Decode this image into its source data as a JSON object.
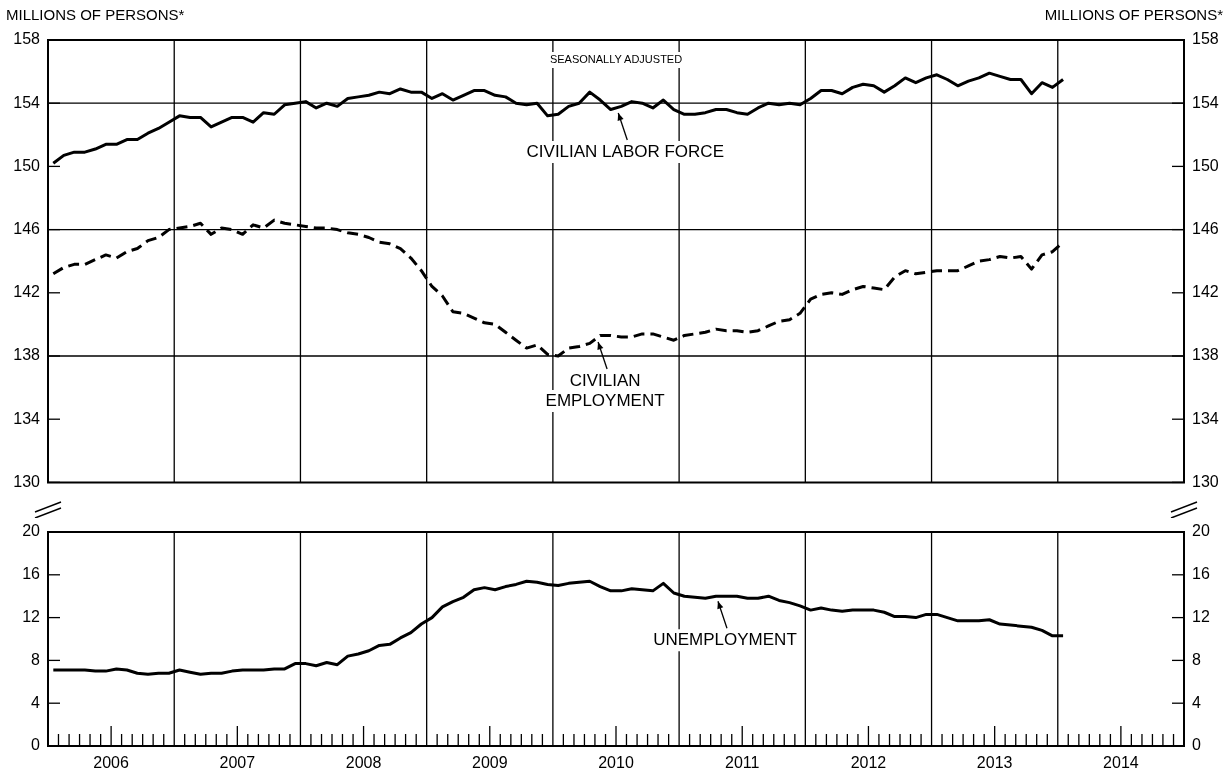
{
  "chart_data": [
    {
      "type": "line",
      "ylabel": "MILLIONS OF PERSONS*",
      "y2label": "MILLIONS OF PERSONS*",
      "x": [
        2006.042,
        2006.125,
        2006.208,
        2006.292,
        2006.375,
        2006.458,
        2006.542,
        2006.625,
        2006.708,
        2006.792,
        2006.875,
        2006.958,
        2007.042,
        2007.125,
        2007.208,
        2007.292,
        2007.375,
        2007.458,
        2007.542,
        2007.625,
        2007.708,
        2007.792,
        2007.875,
        2007.958,
        2008.042,
        2008.125,
        2008.208,
        2008.292,
        2008.375,
        2008.458,
        2008.542,
        2008.625,
        2008.708,
        2008.792,
        2008.875,
        2008.958,
        2009.042,
        2009.125,
        2009.208,
        2009.292,
        2009.375,
        2009.458,
        2009.542,
        2009.625,
        2009.708,
        2009.792,
        2009.875,
        2009.958,
        2010.042,
        2010.125,
        2010.208,
        2010.292,
        2010.375,
        2010.458,
        2010.542,
        2010.625,
        2010.708,
        2010.792,
        2010.875,
        2010.958,
        2011.042,
        2011.125,
        2011.208,
        2011.292,
        2011.375,
        2011.458,
        2011.542,
        2011.625,
        2011.708,
        2011.792,
        2011.875,
        2011.958,
        2012.042,
        2012.125,
        2012.208,
        2012.292,
        2012.375,
        2012.458,
        2012.542,
        2012.625,
        2012.708,
        2012.792,
        2012.875,
        2012.958,
        2013.042,
        2013.125,
        2013.208,
        2013.292,
        2013.375,
        2013.458,
        2013.542,
        2013.625,
        2013.708,
        2013.792,
        2013.875,
        2013.958,
        2014.042
      ],
      "series": [
        {
          "color": "#000000",
          "line_style": "solid",
          "values": [
            150.2,
            150.7,
            150.9,
            150.9,
            151.1,
            151.4,
            151.4,
            151.7,
            151.7,
            152.1,
            152.4,
            152.8,
            153.2,
            153.1,
            153.1,
            152.5,
            152.8,
            153.1,
            153.1,
            152.8,
            153.4,
            153.3,
            153.9,
            154.0,
            154.1,
            153.7,
            154.0,
            153.8,
            154.3,
            154.4,
            154.5,
            154.7,
            154.6,
            154.9,
            154.7,
            154.7,
            154.3,
            154.6,
            154.2,
            154.5,
            154.8,
            154.8,
            154.5,
            154.4,
            154.0,
            153.9,
            154.0,
            153.2,
            153.3,
            153.8,
            154.0,
            154.7,
            154.2,
            153.6,
            153.8,
            154.1,
            154.0,
            153.7,
            154.2,
            153.6,
            153.3,
            153.3,
            153.4,
            153.6,
            153.6,
            153.4,
            153.3,
            153.7,
            154.0,
            153.9,
            154.0,
            153.9,
            154.3,
            154.8,
            154.8,
            154.6,
            155.0,
            155.2,
            155.1,
            154.7,
            155.1,
            155.6,
            155.3,
            155.6,
            155.8,
            155.5,
            155.1,
            155.4,
            155.6,
            155.9,
            155.7,
            155.5,
            155.5,
            154.6,
            155.3,
            155.0,
            155.5
          ]
        },
        {
          "color": "#000000",
          "line_style": "dashed",
          "values": [
            143.2,
            143.6,
            143.8,
            143.8,
            144.1,
            144.4,
            144.2,
            144.6,
            144.8,
            145.3,
            145.5,
            146.0,
            146.1,
            146.2,
            146.4,
            145.7,
            146.1,
            146.0,
            145.7,
            146.3,
            146.1,
            146.6,
            146.4,
            146.3,
            146.2,
            146.1,
            146.1,
            146.0,
            145.8,
            145.7,
            145.5,
            145.2,
            145.1,
            144.8,
            144.2,
            143.4,
            142.4,
            141.8,
            140.8,
            140.7,
            140.4,
            140.1,
            140.0,
            139.5,
            139.0,
            138.5,
            138.7,
            138.1,
            138.0,
            138.5,
            138.6,
            138.8,
            139.3,
            139.3,
            139.2,
            139.2,
            139.4,
            139.4,
            139.2,
            139.0,
            139.3,
            139.4,
            139.5,
            139.7,
            139.6,
            139.6,
            139.5,
            139.6,
            139.9,
            140.2,
            140.3,
            140.7,
            141.6,
            141.9,
            142.0,
            141.9,
            142.2,
            142.4,
            142.3,
            142.2,
            143.0,
            143.4,
            143.2,
            143.3,
            143.4,
            143.4,
            143.4,
            143.7,
            144.0,
            144.1,
            144.3,
            144.2,
            144.3,
            143.5,
            144.4,
            144.6,
            145.2
          ]
        }
      ],
      "xlim": [
        2006,
        2015
      ],
      "ylim": [
        130,
        158
      ],
      "yticks": [
        130,
        134,
        138,
        142,
        146,
        150,
        154,
        158
      ],
      "y2lim": [
        130,
        158
      ],
      "y2ticks": [
        130,
        134,
        138,
        142,
        146,
        150,
        154,
        158
      ],
      "tick_labels": "y",
      "grid": false,
      "legend": false,
      "marker": "none",
      "ref_lines": [
        {
          "axis": "y",
          "value": 154
        },
        {
          "axis": "y",
          "value": 146
        },
        {
          "axis": "y",
          "value": 138
        },
        {
          "axis": "x",
          "value": 2007
        },
        {
          "axis": "x",
          "value": 2008
        },
        {
          "axis": "x",
          "value": 2009
        },
        {
          "axis": "x",
          "value": 2010
        },
        {
          "axis": "x",
          "value": 2011
        },
        {
          "axis": "x",
          "value": 2012
        },
        {
          "axis": "x",
          "value": 2013
        },
        {
          "axis": "x",
          "value": 2014
        }
      ],
      "annotations": [
        "SEASONALLY ADJUSTED",
        {
          "text": "CIVILIAN LABOR FORCE",
          "x": 2010.51,
          "y": 153.7
        },
        {
          "text": "CIVILIAN\nEMPLOYMENT",
          "x": 2010.35,
          "y": 139.2
        }
      ]
    },
    {
      "type": "line",
      "x": [
        2006.042,
        2006.125,
        2006.208,
        2006.292,
        2006.375,
        2006.458,
        2006.542,
        2006.625,
        2006.708,
        2006.792,
        2006.875,
        2006.958,
        2007.042,
        2007.125,
        2007.208,
        2007.292,
        2007.375,
        2007.458,
        2007.542,
        2007.625,
        2007.708,
        2007.792,
        2007.875,
        2007.958,
        2008.042,
        2008.125,
        2008.208,
        2008.292,
        2008.375,
        2008.458,
        2008.542,
        2008.625,
        2008.708,
        2008.792,
        2008.875,
        2008.958,
        2009.042,
        2009.125,
        2009.208,
        2009.292,
        2009.375,
        2009.458,
        2009.542,
        2009.625,
        2009.708,
        2009.792,
        2009.875,
        2009.958,
        2010.042,
        2010.125,
        2010.208,
        2010.292,
        2010.375,
        2010.458,
        2010.542,
        2010.625,
        2010.708,
        2010.792,
        2010.875,
        2010.958,
        2011.042,
        2011.125,
        2011.208,
        2011.292,
        2011.375,
        2011.458,
        2011.542,
        2011.625,
        2011.708,
        2011.792,
        2011.875,
        2011.958,
        2012.042,
        2012.125,
        2012.208,
        2012.292,
        2012.375,
        2012.458,
        2012.542,
        2012.625,
        2012.708,
        2012.792,
        2012.875,
        2012.958,
        2013.042,
        2013.125,
        2013.208,
        2013.292,
        2013.375,
        2013.458,
        2013.542,
        2013.625,
        2013.708,
        2013.792,
        2013.875,
        2013.958,
        2014.042
      ],
      "series": [
        {
          "color": "#000000",
          "line_style": "solid",
          "values": [
            7.1,
            7.1,
            7.1,
            7.1,
            7.0,
            7.0,
            7.2,
            7.1,
            6.8,
            6.7,
            6.8,
            6.8,
            7.1,
            6.9,
            6.7,
            6.8,
            6.8,
            7.0,
            7.1,
            7.1,
            7.1,
            7.2,
            7.2,
            7.7,
            7.7,
            7.5,
            7.8,
            7.6,
            8.4,
            8.6,
            8.9,
            9.4,
            9.5,
            10.1,
            10.6,
            11.4,
            12.0,
            13.0,
            13.5,
            13.9,
            14.6,
            14.8,
            14.6,
            14.9,
            15.1,
            15.4,
            15.3,
            15.1,
            15.0,
            15.2,
            15.3,
            15.4,
            14.9,
            14.5,
            14.5,
            14.7,
            14.6,
            14.5,
            15.2,
            14.3,
            14.0,
            13.9,
            13.8,
            14.0,
            14.0,
            14.0,
            13.8,
            13.8,
            14.0,
            13.6,
            13.4,
            13.1,
            12.7,
            12.9,
            12.7,
            12.6,
            12.7,
            12.7,
            12.7,
            12.5,
            12.1,
            12.1,
            12.0,
            12.3,
            12.3,
            12.0,
            11.7,
            11.7,
            11.7,
            11.8,
            11.4,
            11.3,
            11.2,
            11.1,
            10.8,
            10.3,
            10.3
          ]
        }
      ],
      "xlim": [
        2006,
        2015
      ],
      "xticks": [
        {
          "value": 2006.083,
          "label": null
        },
        {
          "value": 2006.167,
          "label": null
        },
        {
          "value": 2006.25,
          "label": null
        },
        {
          "value": 2006.333,
          "label": null
        },
        {
          "value": 2006.417,
          "label": null
        },
        {
          "value": 2006.5,
          "label": "2006"
        },
        {
          "value": 2006.583,
          "label": null
        },
        {
          "value": 2006.667,
          "label": null
        },
        {
          "value": 2006.75,
          "label": null
        },
        {
          "value": 2006.833,
          "label": null
        },
        {
          "value": 2006.917,
          "label": null
        },
        {
          "value": 2007.083,
          "label": null
        },
        {
          "value": 2007.167,
          "label": null
        },
        {
          "value": 2007.25,
          "label": null
        },
        {
          "value": 2007.333,
          "label": null
        },
        {
          "value": 2007.417,
          "label": null
        },
        {
          "value": 2007.5,
          "label": "2007"
        },
        {
          "value": 2007.583,
          "label": null
        },
        {
          "value": 2007.667,
          "label": null
        },
        {
          "value": 2007.75,
          "label": null
        },
        {
          "value": 2007.833,
          "label": null
        },
        {
          "value": 2007.917,
          "label": null
        },
        {
          "value": 2008.083,
          "label": null
        },
        {
          "value": 2008.167,
          "label": null
        },
        {
          "value": 2008.25,
          "label": null
        },
        {
          "value": 2008.333,
          "label": null
        },
        {
          "value": 2008.417,
          "label": null
        },
        {
          "value": 2008.5,
          "label": "2008"
        },
        {
          "value": 2008.583,
          "label": null
        },
        {
          "value": 2008.667,
          "label": null
        },
        {
          "value": 2008.75,
          "label": null
        },
        {
          "value": 2008.833,
          "label": null
        },
        {
          "value": 2008.917,
          "label": null
        },
        {
          "value": 2009.083,
          "label": null
        },
        {
          "value": 2009.167,
          "label": null
        },
        {
          "value": 2009.25,
          "label": null
        },
        {
          "value": 2009.333,
          "label": null
        },
        {
          "value": 2009.417,
          "label": null
        },
        {
          "value": 2009.5,
          "label": "2009"
        },
        {
          "value": 2009.583,
          "label": null
        },
        {
          "value": 2009.667,
          "label": null
        },
        {
          "value": 2009.75,
          "label": null
        },
        {
          "value": 2009.833,
          "label": null
        },
        {
          "value": 2009.917,
          "label": null
        },
        {
          "value": 2010.083,
          "label": null
        },
        {
          "value": 2010.167,
          "label": null
        },
        {
          "value": 2010.25,
          "label": null
        },
        {
          "value": 2010.333,
          "label": null
        },
        {
          "value": 2010.417,
          "label": null
        },
        {
          "value": 2010.5,
          "label": "2010"
        },
        {
          "value": 2010.583,
          "label": null
        },
        {
          "value": 2010.667,
          "label": null
        },
        {
          "value": 2010.75,
          "label": null
        },
        {
          "value": 2010.833,
          "label": null
        },
        {
          "value": 2010.917,
          "label": null
        },
        {
          "value": 2011.083,
          "label": null
        },
        {
          "value": 2011.167,
          "label": null
        },
        {
          "value": 2011.25,
          "label": null
        },
        {
          "value": 2011.333,
          "label": null
        },
        {
          "value": 2011.417,
          "label": null
        },
        {
          "value": 2011.5,
          "label": "2011"
        },
        {
          "value": 2011.583,
          "label": null
        },
        {
          "value": 2011.667,
          "label": null
        },
        {
          "value": 2011.75,
          "label": null
        },
        {
          "value": 2011.833,
          "label": null
        },
        {
          "value": 2011.917,
          "label": null
        },
        {
          "value": 2012.083,
          "label": null
        },
        {
          "value": 2012.167,
          "label": null
        },
        {
          "value": 2012.25,
          "label": null
        },
        {
          "value": 2012.333,
          "label": null
        },
        {
          "value": 2012.417,
          "label": null
        },
        {
          "value": 2012.5,
          "label": "2012"
        },
        {
          "value": 2012.583,
          "label": null
        },
        {
          "value": 2012.667,
          "label": null
        },
        {
          "value": 2012.75,
          "label": null
        },
        {
          "value": 2012.833,
          "label": null
        },
        {
          "value": 2012.917,
          "label": null
        },
        {
          "value": 2013.083,
          "label": null
        },
        {
          "value": 2013.167,
          "label": null
        },
        {
          "value": 2013.25,
          "label": null
        },
        {
          "value": 2013.333,
          "label": null
        },
        {
          "value": 2013.417,
          "label": null
        },
        {
          "value": 2013.5,
          "label": "2013"
        },
        {
          "value": 2013.583,
          "label": null
        },
        {
          "value": 2013.667,
          "label": null
        },
        {
          "value": 2013.75,
          "label": null
        },
        {
          "value": 2013.833,
          "label": null
        },
        {
          "value": 2013.917,
          "label": null
        },
        {
          "value": 2014.083,
          "label": null
        },
        {
          "value": 2014.167,
          "label": null
        },
        {
          "value": 2014.25,
          "label": null
        },
        {
          "value": 2014.333,
          "label": null
        },
        {
          "value": 2014.417,
          "label": null
        },
        {
          "value": 2014.5,
          "label": "2014"
        },
        {
          "value": 2014.583,
          "label": null
        },
        {
          "value": 2014.667,
          "label": null
        },
        {
          "value": 2014.75,
          "label": null
        },
        {
          "value": 2014.833,
          "label": null
        },
        {
          "value": 2014.917,
          "label": null
        }
      ],
      "ylim": [
        0,
        20
      ],
      "yticks": [
        0,
        4,
        8,
        12,
        16,
        20
      ],
      "y2lim": [
        0,
        20
      ],
      "y2ticks": [
        0,
        4,
        8,
        12,
        16,
        20
      ],
      "grid": false,
      "legend": false,
      "marker": "none",
      "ref_lines": [
        {
          "axis": "x",
          "value": 2007
        },
        {
          "axis": "x",
          "value": 2008
        },
        {
          "axis": "x",
          "value": 2009
        },
        {
          "axis": "x",
          "value": 2010
        },
        {
          "axis": "x",
          "value": 2011
        },
        {
          "axis": "x",
          "value": 2012
        },
        {
          "axis": "x",
          "value": 2013
        },
        {
          "axis": "x",
          "value": 2014
        }
      ],
      "annotations": [
        {
          "text": "UNEMPLOYMENT",
          "x": 2011.3,
          "y": 14.0
        }
      ]
    }
  ]
}
